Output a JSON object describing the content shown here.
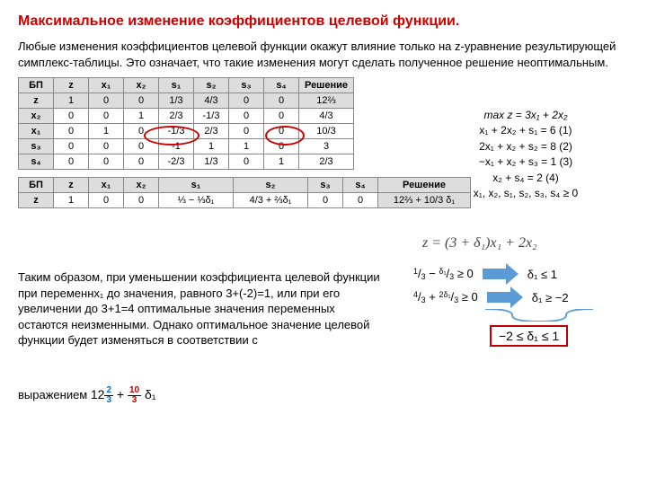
{
  "title": "Максимальное изменение коэффициентов целевой функции.",
  "intro": "Любые изменения коэффициентов целевой функции окажут влияние только на z-уравнение результирующей симплекс-таблицы. Это означает, что такие изменения могут сделать полученное решение неоптимальным.",
  "table1": {
    "headers": [
      "БП",
      "z",
      "x₁",
      "x₂",
      "s₁",
      "s₂",
      "s₃",
      "s₄",
      "Решение"
    ],
    "rows": [
      [
        "z",
        "1",
        "0",
        "0",
        "1/3",
        "4/3",
        "0",
        "0",
        "12⅔"
      ],
      [
        "x₂",
        "0",
        "0",
        "1",
        "2/3",
        "-1/3",
        "0",
        "0",
        "4/3"
      ],
      [
        "x₁",
        "0",
        "1",
        "0",
        "-1/3",
        "2/3",
        "0",
        "0",
        "10/3"
      ],
      [
        "s₃",
        "0",
        "0",
        "0",
        "-1",
        "1",
        "1",
        "0",
        "3"
      ],
      [
        "s₄",
        "0",
        "0",
        "0",
        "-2/3",
        "1/3",
        "0",
        "1",
        "2/3"
      ]
    ]
  },
  "table2": {
    "headers": [
      "БП",
      "z",
      "x₁",
      "x₂",
      "s₁",
      "s₂",
      "s₃",
      "s₄",
      "Решение"
    ],
    "rows": [
      [
        "z",
        "1",
        "0",
        "0",
        "⅓ − ⅓δ₁",
        "4/3 + ⅔δ₁",
        "0",
        "0",
        "12⅔ + 10/3 δ₁"
      ]
    ]
  },
  "math_system": {
    "l0": "max z = 3x₁ + 2x₂",
    "l1": "x₁ + 2x₂ + s₁ = 6  (1)",
    "l2": "2x₁ + x₂ + s₂ = 8 (2)",
    "l3": "−x₁ + x₂ + s₃ = 1 (3)",
    "l4": "x₂ + s₄ = 2 (4)",
    "l5": "x₁, x₂, s₁, s₂, s₃, s₄ ≥ 0"
  },
  "eq_main": "z = (3 + δ₁)x₁ + 2x₂",
  "ineq1_left": "1/3 − δ₁/3 ≥ 0",
  "ineq1_right": "δ₁ ≤ 1",
  "ineq2_left": "4/3 + 2δ₁/3 ≥ 0",
  "ineq2_right": "δ₁ ≥ −2",
  "result": "−2 ≤ δ₁ ≤ 1",
  "conclusion": "Таким образом, при уменьшении коэффициента целевой функции при переменнx₁     до значения, равного 3+(-2)=1, или при его увеличении до 3+1=4 оптимальные значения переменных остаются неизменными. Однако оптимальное значение целевой функции будет изменяться в соответствии с",
  "conclusion_tail": "выражением ",
  "expr_tail": "12⅔ + 10/3 δ₁"
}
